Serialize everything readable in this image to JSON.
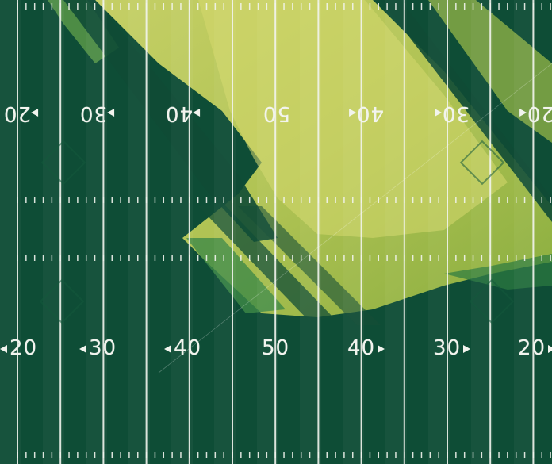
{
  "field": {
    "colors": {
      "turf_dark": "#0e4d36",
      "turf_sun": "#a9c24a",
      "turf_sun_light": "#cfd668",
      "line_white": "#f2f4ee"
    },
    "top_row": [
      {
        "id": "top-20-left",
        "label": "20",
        "arrow": "right"
      },
      {
        "id": "top-30-left",
        "label": "30",
        "arrow": "right"
      },
      {
        "id": "top-40-left",
        "label": "40",
        "arrow": "right"
      },
      {
        "id": "top-50",
        "label": "50",
        "arrow": ""
      },
      {
        "id": "top-40-right",
        "label": "40",
        "arrow": "left"
      },
      {
        "id": "top-30-right",
        "label": "30",
        "arrow": "left"
      },
      {
        "id": "top-20-right",
        "label": "20",
        "arrow": "left"
      }
    ],
    "bottom_row": [
      {
        "id": "bottom-20-left",
        "label": "20",
        "arrow": "left"
      },
      {
        "id": "bottom-30-left",
        "label": "30",
        "arrow": "left"
      },
      {
        "id": "bottom-40-left",
        "label": "40",
        "arrow": "left"
      },
      {
        "id": "bottom-50",
        "label": "50",
        "arrow": ""
      },
      {
        "id": "bottom-40-right",
        "label": "40",
        "arrow": "right"
      },
      {
        "id": "bottom-30-right",
        "label": "30",
        "arrow": "right"
      },
      {
        "id": "bottom-20-right",
        "label": "20",
        "arrow": "right"
      }
    ]
  }
}
